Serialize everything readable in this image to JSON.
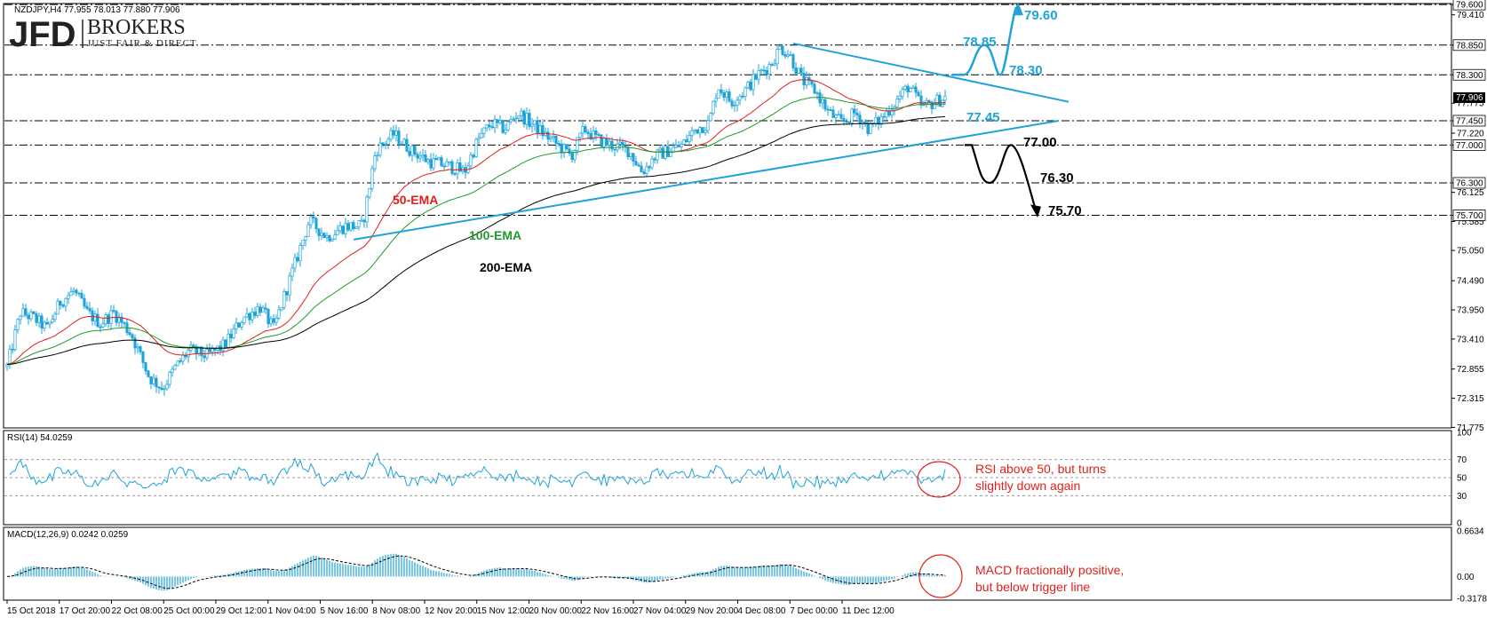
{
  "chart_data": [
    {
      "type": "candlestick",
      "title": "NZDJPY,H4  77.955 78.013 77.880 77.906",
      "logo": {
        "main": "JFD",
        "sub": "BROKERS",
        "tagline": "JUST FAIR & DIRECT"
      },
      "ylim": [
        71.5,
        79.7
      ],
      "y_ticks": [
        "79.600",
        "79.410",
        "78.850",
        "78.300",
        "77.906",
        "77.775",
        "77.450",
        "77.220",
        "77.000",
        "76.300",
        "76.125",
        "75.700",
        "75.585",
        "75.050",
        "74.490",
        "73.950",
        "73.410",
        "72.855",
        "72.315",
        "71.775"
      ],
      "current_price": "77.906",
      "x_ticks": [
        "15 Oct 2018",
        "17 Oct 20:00",
        "22 Oct 08:00",
        "25 Oct 00:00",
        "29 Oct 12:00",
        "1 Nov 04:00",
        "5 Nov 16:00",
        "8 Nov 08:00",
        "12 Nov 20:00",
        "15 Nov 12:00",
        "20 Nov 00:00",
        "22 Nov 16:00",
        "27 Nov 04:00",
        "29 Nov 20:00",
        "4 Dec 08:00",
        "7 Dec 00:00",
        "11 Dec 12:00"
      ],
      "levels": [
        {
          "value": 79.6,
          "label": "79.60",
          "color": "#1fa3d8"
        },
        {
          "value": 78.85,
          "label": "78.85",
          "color": "#1fa3d8"
        },
        {
          "value": 78.3,
          "label": "78.30",
          "color": "#1fa3d8"
        },
        {
          "value": 77.45,
          "label": "77.45",
          "color": "#1fa3d8"
        },
        {
          "value": 77.0,
          "label": "77.00",
          "color": "#000000"
        },
        {
          "value": 76.3,
          "label": "76.30",
          "color": "#000000"
        },
        {
          "value": 75.7,
          "label": "75.70",
          "color": "#000000"
        }
      ],
      "series_labels": [
        {
          "name": "50-EMA",
          "color": "#e0201b"
        },
        {
          "name": "100-EMA",
          "color": "#1e9a2a"
        },
        {
          "name": "200-EMA",
          "color": "#000000"
        }
      ],
      "colors": {
        "candle": "#1fa3d8",
        "trendline": "#1fa3d8",
        "ema50": "#e0201b",
        "ema100": "#1e9a2a",
        "ema200": "#000000"
      }
    },
    {
      "type": "line",
      "title": "RSI(14) 54.0259",
      "ylim": [
        0,
        100
      ],
      "y_ticks": [
        "100",
        "70",
        "50",
        "30",
        "0"
      ],
      "annotation": [
        "RSI above 50, but turns",
        "slightly down again"
      ]
    },
    {
      "type": "histogram",
      "title": "MACD(12,26,9) 0.0242 0.0259",
      "ylim": [
        -0.3178,
        0.6634
      ],
      "y_ticks": [
        "0.6634",
        "0.00",
        "-0.3178"
      ],
      "annotation": [
        "MACD fractionally positive,",
        "but below trigger line"
      ]
    }
  ]
}
